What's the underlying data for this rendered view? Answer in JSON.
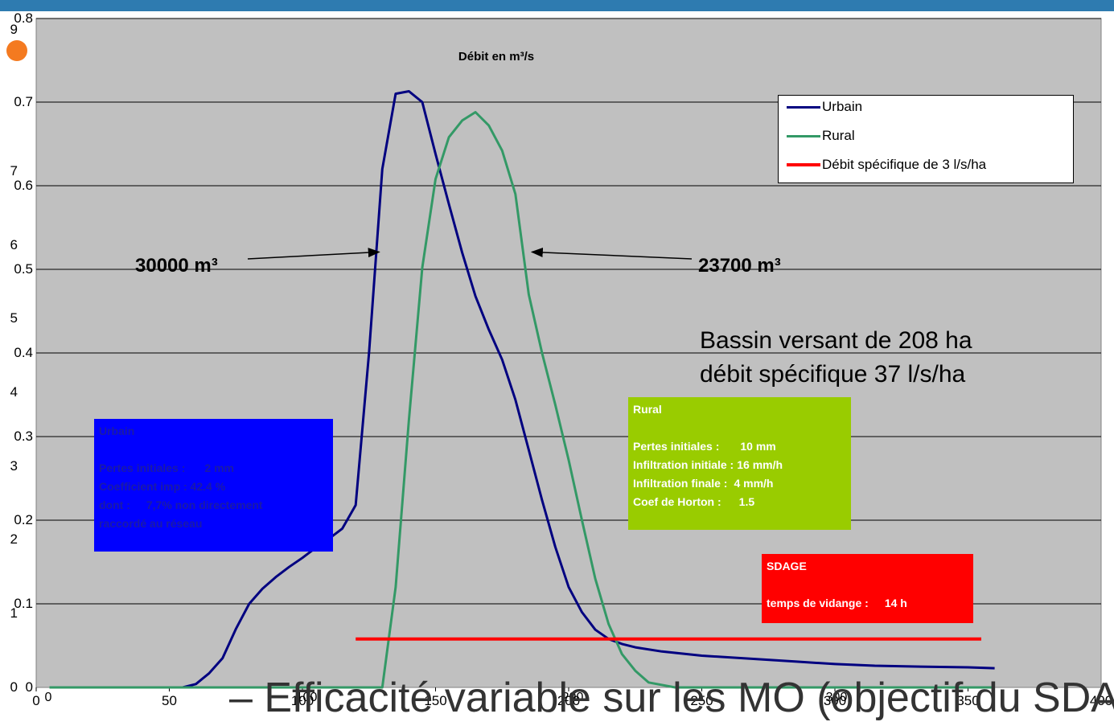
{
  "colors": {
    "urbain": "#000080",
    "rural": "#339966",
    "specifique": "#ff0000",
    "plot_bg": "#c0c0c0",
    "box_urbain": "#0000ff",
    "box_rural": "#99cc00",
    "box_sdage": "#ff0000",
    "bullet": "#f47a20",
    "topbar": "#2e7bb0"
  },
  "background_slide": {
    "bullet": "bullet-icon",
    "text": "– Efficacité variable sur les MO (objectif du SDAG",
    "left_ticks": [
      "9",
      "7",
      "6",
      "5",
      "4",
      "3",
      "2",
      "1",
      "0"
    ],
    "bottom_ticks": [
      "0",
      "100",
      "200",
      "300"
    ]
  },
  "chart_data": {
    "type": "line",
    "title": "Débit en m³/s",
    "xlim": [
      0,
      400
    ],
    "ylim": [
      0,
      0.8
    ],
    "x_ticks": [
      "0",
      "50",
      "100",
      "150",
      "200",
      "250",
      "300",
      "350",
      "400"
    ],
    "y_ticks": [
      "0",
      "0.1",
      "0.2",
      "0.3",
      "0.4",
      "0.5",
      "0.6",
      "0.7",
      "0.8"
    ],
    "grid": "horizontal",
    "legend_position": "top-right",
    "series": [
      {
        "name": "Urbain",
        "color": "#000080",
        "points": [
          [
            5,
            0
          ],
          [
            55,
            0
          ],
          [
            60,
            0.004
          ],
          [
            65,
            0.017
          ],
          [
            70,
            0.035
          ],
          [
            75,
            0.07
          ],
          [
            80,
            0.1
          ],
          [
            85,
            0.118
          ],
          [
            90,
            0.132
          ],
          [
            95,
            0.144
          ],
          [
            100,
            0.155
          ],
          [
            105,
            0.167
          ],
          [
            110,
            0.178
          ],
          [
            115,
            0.19
          ],
          [
            120,
            0.218
          ],
          [
            125,
            0.4
          ],
          [
            130,
            0.62
          ],
          [
            135,
            0.71
          ],
          [
            140,
            0.713
          ],
          [
            145,
            0.7
          ],
          [
            150,
            0.638
          ],
          [
            155,
            0.578
          ],
          [
            160,
            0.52
          ],
          [
            165,
            0.468
          ],
          [
            170,
            0.428
          ],
          [
            175,
            0.392
          ],
          [
            180,
            0.344
          ],
          [
            185,
            0.284
          ],
          [
            190,
            0.224
          ],
          [
            195,
            0.168
          ],
          [
            200,
            0.12
          ],
          [
            205,
            0.09
          ],
          [
            210,
            0.069
          ],
          [
            215,
            0.058
          ],
          [
            220,
            0.052
          ],
          [
            225,
            0.048
          ],
          [
            235,
            0.043
          ],
          [
            250,
            0.038
          ],
          [
            270,
            0.034
          ],
          [
            285,
            0.031
          ],
          [
            300,
            0.028
          ],
          [
            315,
            0.026
          ],
          [
            330,
            0.025
          ],
          [
            350,
            0.024
          ],
          [
            360,
            0.023
          ]
        ]
      },
      {
        "name": "Rural",
        "color": "#339966",
        "points": [
          [
            5,
            0
          ],
          [
            130,
            0
          ],
          [
            135,
            0.12
          ],
          [
            140,
            0.32
          ],
          [
            145,
            0.502
          ],
          [
            150,
            0.608
          ],
          [
            155,
            0.658
          ],
          [
            160,
            0.678
          ],
          [
            165,
            0.688
          ],
          [
            170,
            0.672
          ],
          [
            175,
            0.642
          ],
          [
            180,
            0.59
          ],
          [
            185,
            0.47
          ],
          [
            190,
            0.4
          ],
          [
            195,
            0.338
          ],
          [
            200,
            0.272
          ],
          [
            205,
            0.2
          ],
          [
            210,
            0.13
          ],
          [
            215,
            0.076
          ],
          [
            220,
            0.04
          ],
          [
            225,
            0.02
          ],
          [
            230,
            0.006
          ],
          [
            240,
            0
          ],
          [
            360,
            0
          ]
        ]
      },
      {
        "name": "Débit spécifique de 3 l/s/ha",
        "color": "#ff0000",
        "points": [
          [
            120,
            0.058
          ],
          [
            355,
            0.058
          ]
        ]
      }
    ],
    "annotations": [
      {
        "text": "30000 m³",
        "arrow_to": [
          130,
          0.54
        ]
      },
      {
        "text": "23700 m³",
        "arrow_to": [
          185,
          0.54
        ]
      }
    ],
    "info_text": [
      "Bassin versant de 208 ha",
      "débit spécifique 37 l/s/ha"
    ]
  },
  "boxes": {
    "urbain": {
      "title": "Urbain",
      "rows": [
        {
          "label": "Pertes initiales :",
          "value": "2 mm"
        },
        {
          "label": "Coefficient imp : 42.4 %",
          "value": ""
        },
        {
          "label": "dont :",
          "value": "7,7% non directement"
        },
        {
          "label": "raccordé au réseau",
          "value": ""
        }
      ]
    },
    "rural": {
      "title": "Rural",
      "rows": [
        {
          "label": "Pertes initiales :",
          "value": "10 mm"
        },
        {
          "label": "Infiltration initiale :",
          "value": "16 mm/h"
        },
        {
          "label": "Infiltration finale :",
          "value": "4 mm/h"
        },
        {
          "label": "Coef de Horton :",
          "value": "1.5"
        }
      ]
    },
    "sdage": {
      "title": "SDAGE",
      "rows": [
        {
          "label": "temps de vidange :",
          "value": "14 h"
        }
      ]
    }
  }
}
